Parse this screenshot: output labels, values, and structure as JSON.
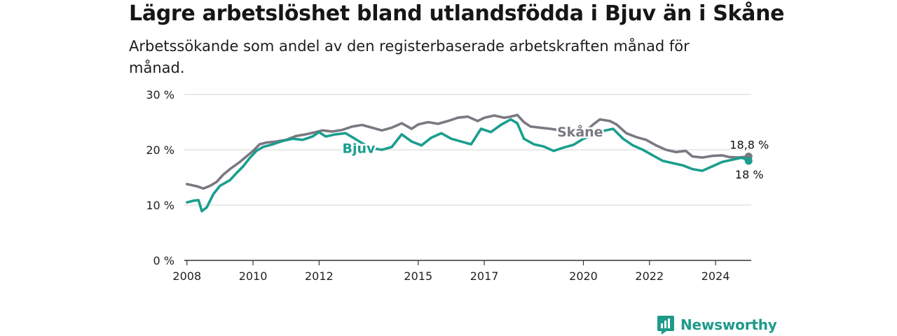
{
  "title": "Lägre arbetslöshet bland utlandsfödda i Bjuv än i Skåne",
  "subtitle": "Arbetssökande som andel av den registerbaserade arbetskraften månad för månad.",
  "brand": {
    "name": "Newsworthy",
    "icon": "newsworthy-logo-icon"
  },
  "colors": {
    "bjuv": "#1a9e8f",
    "skane": "#7a7880",
    "grid": "#dcdcdc",
    "axis": "#333333"
  },
  "chart_data": {
    "type": "line",
    "ylim": [
      0,
      30
    ],
    "xlim": [
      2007.92,
      2025.08
    ],
    "yticks": [
      {
        "value": 0,
        "label": "0 %"
      },
      {
        "value": 10,
        "label": "10 %"
      },
      {
        "value": 20,
        "label": "20 %"
      },
      {
        "value": 30,
        "label": "30 %"
      }
    ],
    "xticks": [
      {
        "value": 2008,
        "label": "2008"
      },
      {
        "value": 2010,
        "label": "2010"
      },
      {
        "value": 2012,
        "label": "2012"
      },
      {
        "value": 2015,
        "label": "2015"
      },
      {
        "value": 2017,
        "label": "2017"
      },
      {
        "value": 2020,
        "label": "2020"
      },
      {
        "value": 2022,
        "label": "2022"
      },
      {
        "value": 2024,
        "label": "2024"
      }
    ],
    "grid": true,
    "series": [
      {
        "name": "Skåne",
        "color": "#7a7880",
        "label_at": 2019.9,
        "end_label": "18,8 %",
        "points": [
          [
            2008.0,
            13.8
          ],
          [
            2008.3,
            13.4
          ],
          [
            2008.5,
            13.0
          ],
          [
            2008.7,
            13.5
          ],
          [
            2008.9,
            14.2
          ],
          [
            2009.1,
            15.5
          ],
          [
            2009.3,
            16.5
          ],
          [
            2009.6,
            17.8
          ],
          [
            2009.8,
            18.8
          ],
          [
            2010.0,
            19.8
          ],
          [
            2010.2,
            21.0
          ],
          [
            2010.4,
            21.3
          ],
          [
            2010.7,
            21.5
          ],
          [
            2011.0,
            21.8
          ],
          [
            2011.3,
            22.5
          ],
          [
            2011.6,
            22.8
          ],
          [
            2011.9,
            23.2
          ],
          [
            2012.1,
            23.5
          ],
          [
            2012.4,
            23.3
          ],
          [
            2012.7,
            23.6
          ],
          [
            2013.0,
            24.2
          ],
          [
            2013.3,
            24.5
          ],
          [
            2013.6,
            24.0
          ],
          [
            2013.9,
            23.5
          ],
          [
            2014.2,
            24.0
          ],
          [
            2014.5,
            24.8
          ],
          [
            2014.8,
            23.8
          ],
          [
            2015.0,
            24.6
          ],
          [
            2015.3,
            25.0
          ],
          [
            2015.6,
            24.7
          ],
          [
            2015.9,
            25.2
          ],
          [
            2016.2,
            25.8
          ],
          [
            2016.5,
            26.0
          ],
          [
            2016.8,
            25.2
          ],
          [
            2017.0,
            25.8
          ],
          [
            2017.3,
            26.2
          ],
          [
            2017.6,
            25.8
          ],
          [
            2017.8,
            26.0
          ],
          [
            2018.0,
            26.3
          ],
          [
            2018.2,
            25.0
          ],
          [
            2018.4,
            24.2
          ],
          [
            2018.7,
            24.0
          ],
          [
            2019.0,
            23.8
          ],
          [
            2019.3,
            23.5
          ],
          [
            2019.6,
            23.2
          ],
          [
            2019.9,
            23.4
          ],
          [
            2020.1,
            23.5
          ],
          [
            2020.3,
            24.6
          ],
          [
            2020.5,
            25.5
          ],
          [
            2020.8,
            25.2
          ],
          [
            2021.0,
            24.6
          ],
          [
            2021.3,
            23.0
          ],
          [
            2021.6,
            22.3
          ],
          [
            2021.9,
            21.8
          ],
          [
            2022.2,
            20.8
          ],
          [
            2022.5,
            20.0
          ],
          [
            2022.8,
            19.6
          ],
          [
            2023.1,
            19.8
          ],
          [
            2023.3,
            18.8
          ],
          [
            2023.6,
            18.6
          ],
          [
            2023.9,
            18.9
          ],
          [
            2024.2,
            19.0
          ],
          [
            2024.4,
            18.7
          ],
          [
            2024.7,
            18.6
          ],
          [
            2025.0,
            18.8
          ]
        ]
      },
      {
        "name": "Bjuv",
        "color": "#1a9e8f",
        "label_at": 2013.2,
        "end_label": "18 %",
        "points": [
          [
            2008.0,
            10.5
          ],
          [
            2008.2,
            10.8
          ],
          [
            2008.35,
            10.9
          ],
          [
            2008.45,
            8.9
          ],
          [
            2008.6,
            9.6
          ],
          [
            2008.8,
            12.0
          ],
          [
            2009.0,
            13.5
          ],
          [
            2009.3,
            14.5
          ],
          [
            2009.5,
            15.8
          ],
          [
            2009.7,
            17.0
          ],
          [
            2009.9,
            18.5
          ],
          [
            2010.1,
            19.8
          ],
          [
            2010.3,
            20.5
          ],
          [
            2010.6,
            21.0
          ],
          [
            2010.9,
            21.6
          ],
          [
            2011.2,
            22.0
          ],
          [
            2011.5,
            21.8
          ],
          [
            2011.8,
            22.4
          ],
          [
            2012.0,
            23.2
          ],
          [
            2012.2,
            22.4
          ],
          [
            2012.5,
            22.8
          ],
          [
            2012.8,
            23.0
          ],
          [
            2013.0,
            22.3
          ],
          [
            2013.3,
            21.2
          ],
          [
            2013.6,
            20.3
          ],
          [
            2013.9,
            20.0
          ],
          [
            2014.2,
            20.5
          ],
          [
            2014.5,
            22.8
          ],
          [
            2014.8,
            21.5
          ],
          [
            2015.1,
            20.8
          ],
          [
            2015.4,
            22.2
          ],
          [
            2015.7,
            23.0
          ],
          [
            2016.0,
            22.0
          ],
          [
            2016.3,
            21.5
          ],
          [
            2016.6,
            21.0
          ],
          [
            2016.9,
            23.8
          ],
          [
            2017.2,
            23.2
          ],
          [
            2017.5,
            24.5
          ],
          [
            2017.8,
            25.5
          ],
          [
            2018.0,
            24.8
          ],
          [
            2018.2,
            22.0
          ],
          [
            2018.5,
            21.0
          ],
          [
            2018.8,
            20.6
          ],
          [
            2019.1,
            19.8
          ],
          [
            2019.4,
            20.4
          ],
          [
            2019.7,
            20.9
          ],
          [
            2020.0,
            22.0
          ],
          [
            2020.3,
            22.6
          ],
          [
            2020.6,
            23.4
          ],
          [
            2020.9,
            23.8
          ],
          [
            2021.2,
            22.0
          ],
          [
            2021.5,
            20.8
          ],
          [
            2021.8,
            20.0
          ],
          [
            2022.1,
            19.0
          ],
          [
            2022.4,
            18.0
          ],
          [
            2022.7,
            17.6
          ],
          [
            2023.0,
            17.2
          ],
          [
            2023.3,
            16.5
          ],
          [
            2023.6,
            16.2
          ],
          [
            2023.9,
            17.0
          ],
          [
            2024.2,
            17.8
          ],
          [
            2024.5,
            18.2
          ],
          [
            2024.8,
            18.6
          ],
          [
            2025.0,
            18.0
          ]
        ]
      }
    ]
  }
}
